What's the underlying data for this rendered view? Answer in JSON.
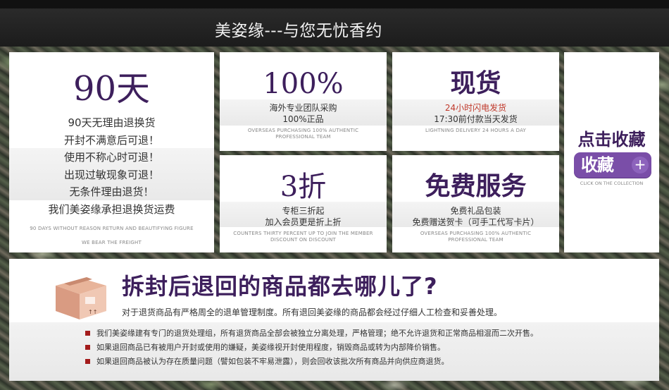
{
  "header": {
    "title": "美姿缘---与您无忧香约"
  },
  "cards": {
    "return": {
      "headline": "90天",
      "lines": [
        "90天无理由退换货",
        "开封不满意后可退！",
        "使用不称心时可退！",
        "出现过敏现象可退！",
        "无条件理由退货！",
        "我们美姿缘承担退换货运费"
      ],
      "english_1": "90 DAYS WITHOUT REASON RETURN AND BEAUTIFYING FIGURE",
      "english_2": "WE BEAR THE FREIGHT"
    },
    "authentic": {
      "headline": "100%",
      "line_1": "海外专业团队采购",
      "line_2": "100%正品",
      "english_1": "OVERSEAS PURCHASING 100% AUTHENTIC",
      "english_2": "PROFESSIONAL TEAM"
    },
    "stock": {
      "headline": "现货",
      "line_1": "24小时闪电发货",
      "line_2": "17:30前付款当天发货",
      "english_1": "LIGHTNING DELIVERY 24 HOURS A DAY"
    },
    "discount": {
      "headline": "3折",
      "line_1": "专柜三折起",
      "line_2": "加入会员更是折上折",
      "english_1": "COUNTERS THIRTY PERCENT UP TO JOIN THE MEMBER",
      "english_2": "DISCOUNT ON DISCOUNT"
    },
    "free_service": {
      "headline": "免费服务",
      "line_1": "免费礼品包装",
      "line_2": "免费赠送贺卡（可手工代写卡片）",
      "english_1": "OVERSEAS PURCHASING 100% AUTHENTIC",
      "english_2": "PROFESSIONAL TEAM"
    },
    "favorite": {
      "title": "点击收藏",
      "badge_text": "收藏",
      "badge_plus": "+",
      "english": "CLICK ON THE COLLECTION"
    }
  },
  "panel": {
    "title": "拆封后退回的商品都去哪儿了?",
    "subtitle": "对于退货商品有严格周全的退单管理制度。所有退回美姿缘的商品都会经过仔细人工检查和妥善处理。",
    "rules": [
      "我们美姿缘建有专门的退货处理组，所有退货商品全部会被独立分离处理，严格管理；绝不允许退货和正常商品相混而二次开售。",
      "如果退回商品已有被用户开封或使用的嫌疑，美姿缘视开封使用程度，销毁商品或转为内部降价销售。",
      "如果退回商品被认为存在质量问题（譬如包装不牢易泄露），则会回收该批次所有商品并向供应商退货。"
    ]
  },
  "colors": {
    "accent_purple": "#3d1f5c",
    "badge_purple": "#7a4ea8",
    "bullet_red": "#a31b1b"
  }
}
